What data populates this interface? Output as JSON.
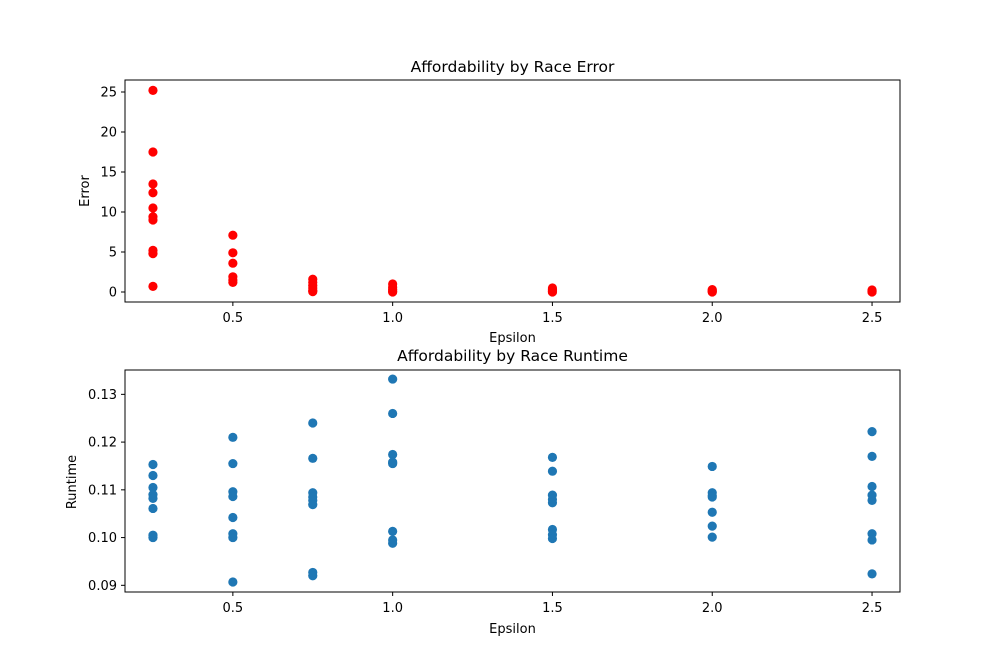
{
  "chart_data": [
    {
      "type": "scatter",
      "title": "Affordability by Race Error",
      "xlabel": "Epsilon",
      "ylabel": "Error",
      "xlim": [
        0.1625,
        2.5875
      ],
      "ylim": [
        -1.25,
        26.5
      ],
      "xticks": [
        0.5,
        1.0,
        1.5,
        2.0,
        2.5
      ],
      "xtick_labels": [
        "0.5",
        "1.0",
        "1.5",
        "2.0",
        "2.5"
      ],
      "yticks": [
        0,
        5,
        10,
        15,
        20,
        25
      ],
      "ytick_labels": [
        "0",
        "5",
        "10",
        "15",
        "20",
        "25"
      ],
      "grid": false,
      "color": "#ff0000",
      "series": [
        {
          "points": [
            [
              0.25,
              25.2
            ],
            [
              0.25,
              17.5
            ],
            [
              0.25,
              13.5
            ],
            [
              0.25,
              12.4
            ],
            [
              0.25,
              10.5
            ],
            [
              0.25,
              9.4
            ],
            [
              0.25,
              9.0
            ],
            [
              0.25,
              5.2
            ],
            [
              0.25,
              4.8
            ],
            [
              0.25,
              0.7
            ],
            [
              0.5,
              7.1
            ],
            [
              0.5,
              4.9
            ],
            [
              0.5,
              3.6
            ],
            [
              0.5,
              1.9
            ],
            [
              0.5,
              1.5
            ],
            [
              0.5,
              1.2
            ],
            [
              0.75,
              1.6
            ],
            [
              0.75,
              1.2
            ],
            [
              0.75,
              0.8
            ],
            [
              0.75,
              0.5
            ],
            [
              0.75,
              0.2
            ],
            [
              0.75,
              0.05
            ],
            [
              1.0,
              1.0
            ],
            [
              1.0,
              0.6
            ],
            [
              1.0,
              0.3
            ],
            [
              1.0,
              0.1
            ],
            [
              1.0,
              0.0
            ],
            [
              1.5,
              0.5
            ],
            [
              1.5,
              0.3
            ],
            [
              1.5,
              0.15
            ],
            [
              1.5,
              0.05
            ],
            [
              1.5,
              0.0
            ],
            [
              2.0,
              0.3
            ],
            [
              2.0,
              0.15
            ],
            [
              2.0,
              0.05
            ],
            [
              2.0,
              0.0
            ],
            [
              2.5,
              0.25
            ],
            [
              2.5,
              0.15
            ],
            [
              2.5,
              0.05
            ],
            [
              2.5,
              0.0
            ]
          ]
        }
      ]
    },
    {
      "type": "scatter",
      "title": "Affordability by Race Runtime",
      "xlabel": "Epsilon",
      "ylabel": "Runtime",
      "xlim": [
        0.1625,
        2.5875
      ],
      "ylim": [
        0.0886,
        0.1351
      ],
      "xticks": [
        0.5,
        1.0,
        1.5,
        2.0,
        2.5
      ],
      "xtick_labels": [
        "0.5",
        "1.0",
        "1.5",
        "2.0",
        "2.5"
      ],
      "yticks": [
        0.09,
        0.1,
        0.11,
        0.12,
        0.13
      ],
      "ytick_labels": [
        "0.09",
        "0.10",
        "0.11",
        "0.12",
        "0.13"
      ],
      "grid": false,
      "color": "#1f77b4",
      "series": [
        {
          "points": [
            [
              0.25,
              0.1153
            ],
            [
              0.25,
              0.113
            ],
            [
              0.25,
              0.1105
            ],
            [
              0.25,
              0.109
            ],
            [
              0.25,
              0.1082
            ],
            [
              0.25,
              0.1061
            ],
            [
              0.25,
              0.1005
            ],
            [
              0.25,
              0.1
            ],
            [
              0.5,
              0.121
            ],
            [
              0.5,
              0.1155
            ],
            [
              0.5,
              0.1096
            ],
            [
              0.5,
              0.1086
            ],
            [
              0.5,
              0.1042
            ],
            [
              0.5,
              0.1008
            ],
            [
              0.5,
              0.1
            ],
            [
              0.5,
              0.0907
            ],
            [
              0.75,
              0.124
            ],
            [
              0.75,
              0.1166
            ],
            [
              0.75,
              0.1094
            ],
            [
              0.75,
              0.1085
            ],
            [
              0.75,
              0.1078
            ],
            [
              0.75,
              0.1069
            ],
            [
              0.75,
              0.0927
            ],
            [
              0.75,
              0.092
            ],
            [
              1.0,
              0.1332
            ],
            [
              1.0,
              0.126
            ],
            [
              1.0,
              0.1174
            ],
            [
              1.0,
              0.1158
            ],
            [
              1.0,
              0.1155
            ],
            [
              1.0,
              0.1013
            ],
            [
              1.0,
              0.0995
            ],
            [
              1.0,
              0.0988
            ],
            [
              1.5,
              0.1168
            ],
            [
              1.5,
              0.1139
            ],
            [
              1.5,
              0.1089
            ],
            [
              1.5,
              0.108
            ],
            [
              1.5,
              0.1073
            ],
            [
              1.5,
              0.1017
            ],
            [
              1.5,
              0.1006
            ],
            [
              1.5,
              0.0998
            ],
            [
              2.0,
              0.1149
            ],
            [
              2.0,
              0.1094
            ],
            [
              2.0,
              0.1088
            ],
            [
              2.0,
              0.1085
            ],
            [
              2.0,
              0.1053
            ],
            [
              2.0,
              0.1024
            ],
            [
              2.0,
              0.1001
            ],
            [
              2.5,
              0.1222
            ],
            [
              2.5,
              0.117
            ],
            [
              2.5,
              0.1107
            ],
            [
              2.5,
              0.1089
            ],
            [
              2.5,
              0.1078
            ],
            [
              2.5,
              0.1008
            ],
            [
              2.5,
              0.0995
            ],
            [
              2.5,
              0.0924
            ]
          ]
        }
      ]
    }
  ]
}
